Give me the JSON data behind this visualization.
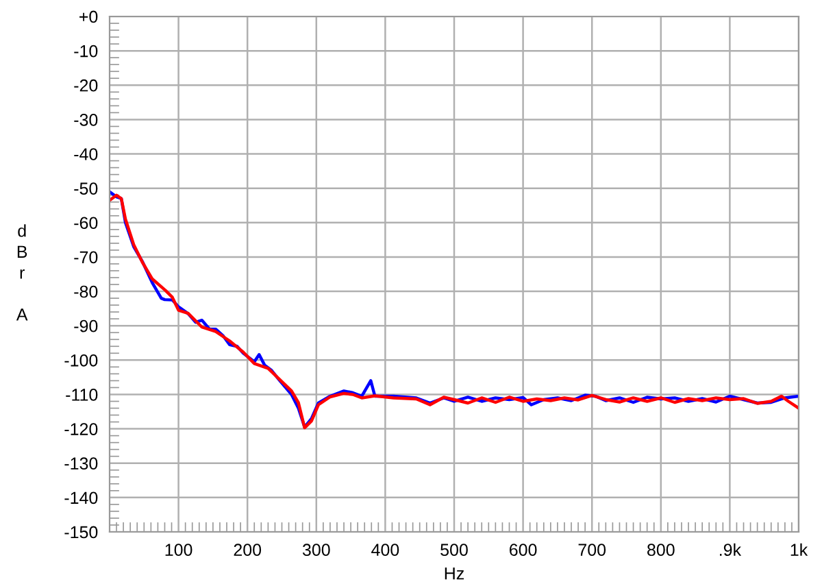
{
  "chart_data": {
    "type": "line",
    "xlabel": "Hz",
    "ylabel": "dBr A",
    "xlim": [
      0,
      1000
    ],
    "ylim": [
      -150,
      0
    ],
    "xticks": [
      100,
      200,
      300,
      400,
      500,
      600,
      700,
      800,
      {
        "value": 900,
        "label": ".9k"
      },
      {
        "value": 1000,
        "label": "1k"
      }
    ],
    "yticks": [
      {
        "value": 0,
        "label": "+0"
      },
      -10,
      -20,
      -30,
      -40,
      -50,
      -60,
      -70,
      -80,
      -90,
      -100,
      -110,
      -120,
      -130,
      -140,
      -150
    ],
    "grid": true,
    "legend": false,
    "marker": "none",
    "line_style": "solid",
    "series": [
      {
        "color": "#0000ff",
        "x": [
          0,
          10,
          17,
          23,
          35,
          48,
          62,
          75,
          80,
          91,
          100,
          114,
          125,
          134,
          145,
          154,
          165,
          174,
          185,
          194,
          210,
          217,
          225,
          235,
          247,
          264,
          274,
          283,
          293,
          303,
          320,
          340,
          353,
          366,
          379,
          385,
          412,
          445,
          465,
          485,
          500,
          520,
          540,
          560,
          580,
          600,
          612,
          630,
          650,
          670,
          690,
          705,
          720,
          740,
          760,
          780,
          800,
          820,
          840,
          860,
          880,
          900,
          920,
          940,
          960,
          980,
          1000
        ],
        "values": [
          -51,
          -52.5,
          -53,
          -60,
          -67,
          -71.5,
          -77.5,
          -82,
          -82.4,
          -82.5,
          -84.5,
          -86.5,
          -89,
          -88.4,
          -91,
          -91,
          -93,
          -95.5,
          -96,
          -98,
          -100.5,
          -98.4,
          -101.5,
          -103,
          -106,
          -110,
          -114,
          -119.5,
          -117,
          -112.5,
          -110.5,
          -109,
          -109.5,
          -110.5,
          -106,
          -110.5,
          -110.5,
          -111,
          -112.5,
          -111,
          -112,
          -110.8,
          -112,
          -111,
          -111.5,
          -110.9,
          -113,
          -111.5,
          -111,
          -111.8,
          -110.2,
          -110.5,
          -111.8,
          -111,
          -112.3,
          -110.8,
          -111.3,
          -111,
          -112,
          -111.2,
          -112.2,
          -110.5,
          -111.5,
          -112.5,
          -112.3,
          -111,
          -110.5
        ]
      },
      {
        "color": "#ff0000",
        "x": [
          0,
          10,
          17,
          23,
          35,
          48,
          62,
          81,
          91,
          100,
          114,
          134,
          154,
          174,
          194,
          210,
          230,
          247,
          264,
          274,
          283,
          293,
          303,
          320,
          340,
          353,
          366,
          385,
          412,
          445,
          465,
          485,
          500,
          520,
          540,
          560,
          580,
          600,
          620,
          640,
          660,
          680,
          700,
          720,
          740,
          760,
          780,
          800,
          820,
          840,
          860,
          880,
          900,
          920,
          940,
          960,
          975,
          985,
          1000
        ],
        "values": [
          -53.5,
          -52,
          -53,
          -59,
          -66.4,
          -71.7,
          -76.4,
          -79.7,
          -81.7,
          -85.5,
          -86.4,
          -90.4,
          -91.7,
          -94.4,
          -97.7,
          -101,
          -102.4,
          -105.7,
          -109,
          -112.4,
          -119.7,
          -117.7,
          -113,
          -110.7,
          -109.7,
          -110,
          -111,
          -110.4,
          -111,
          -111.3,
          -113,
          -110.8,
          -111.5,
          -112.5,
          -111,
          -112.3,
          -110.8,
          -112,
          -111.3,
          -111.8,
          -111,
          -111.6,
          -110.3,
          -111.5,
          -112.2,
          -111,
          -112,
          -111,
          -112.3,
          -111.2,
          -111.8,
          -111,
          -111.5,
          -111.2,
          -112.6,
          -112,
          -110.5,
          -112,
          -114
        ]
      }
    ]
  }
}
